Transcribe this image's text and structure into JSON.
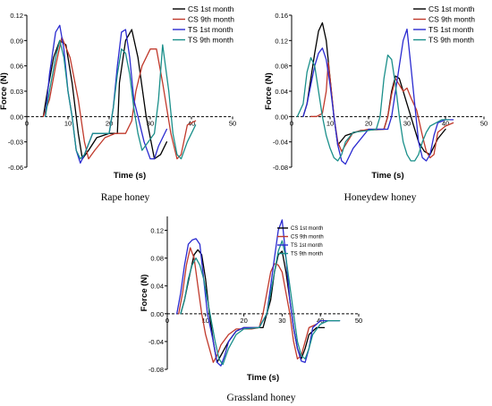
{
  "chart_data": [
    {
      "type": "line",
      "caption": "Rape honey",
      "xlabel": "Time (s)",
      "ylabel": "Force (N)",
      "xlim": [
        0,
        50
      ],
      "ylim": [
        -0.06,
        0.12
      ],
      "xticks": [
        0,
        10,
        20,
        30,
        40,
        50
      ],
      "yticks": [
        -0.06,
        -0.03,
        0.0,
        0.03,
        0.06,
        0.09,
        0.12
      ],
      "xtick_labels": [
        "0",
        "10",
        "20",
        "30",
        "40",
        "50"
      ],
      "ytick_labels": [
        "-0.06",
        "-0.03",
        "0.00",
        "0.03",
        "0.06",
        "0.09",
        "0.12"
      ],
      "legend_position": "top-right",
      "series": [
        {
          "name": "CS 1st month",
          "color": "#000000",
          "x": [
            4,
            5,
            6.5,
            8,
            9.5,
            11,
            12.5,
            13.5,
            15,
            17,
            20,
            22,
            22.5,
            24,
            25.5,
            27,
            29,
            31,
            32.5,
            34
          ],
          "y": [
            0.0,
            0.03,
            0.07,
            0.09,
            0.085,
            0.04,
            -0.02,
            -0.05,
            -0.04,
            -0.025,
            -0.02,
            -0.02,
            0.04,
            0.09,
            0.103,
            0.07,
            0.0,
            -0.05,
            -0.045,
            -0.03
          ]
        },
        {
          "name": "CS 9th month",
          "color": "#c0392b",
          "x": [
            4,
            5.5,
            7,
            8.5,
            10.5,
            12.5,
            14,
            15,
            16.5,
            19,
            21.5,
            24,
            25.5,
            26.5,
            28,
            30,
            31.5,
            33,
            35,
            36.5,
            37.5,
            39,
            41
          ],
          "y": [
            0.0,
            0.02,
            0.06,
            0.094,
            0.07,
            0.02,
            -0.03,
            -0.05,
            -0.04,
            -0.025,
            -0.02,
            -0.02,
            -0.005,
            0.03,
            0.06,
            0.08,
            0.08,
            0.04,
            -0.02,
            -0.05,
            -0.045,
            -0.01,
            -0.005
          ]
        },
        {
          "name": "TS 1st month",
          "color": "#2a2ad0",
          "x": [
            4.5,
            5.5,
            7,
            8,
            9,
            10,
            11,
            12,
            13,
            14,
            16,
            20,
            21,
            22,
            23,
            24,
            25,
            26,
            27,
            28.5,
            30,
            31,
            32,
            34
          ],
          "y": [
            0.0,
            0.05,
            0.1,
            0.108,
            0.08,
            0.03,
            0.0,
            -0.04,
            -0.055,
            -0.045,
            -0.02,
            -0.02,
            0.01,
            0.06,
            0.1,
            0.103,
            0.07,
            0.02,
            0.0,
            -0.03,
            -0.05,
            -0.05,
            -0.035,
            -0.015
          ]
        },
        {
          "name": "TS 9th month",
          "color": "#1a8f8a",
          "x": [
            4.5,
            5.5,
            7,
            8,
            9,
            10,
            11,
            12,
            13,
            14,
            16,
            20,
            21,
            22,
            23,
            24,
            25,
            26,
            27,
            28,
            29.5,
            31,
            32,
            33,
            34.5,
            35.5,
            36.5,
            37.5,
            39,
            41
          ],
          "y": [
            0.0,
            0.03,
            0.07,
            0.09,
            0.07,
            0.03,
            0.0,
            -0.04,
            -0.05,
            -0.045,
            -0.02,
            -0.02,
            0.01,
            0.05,
            0.08,
            0.075,
            0.05,
            0.01,
            -0.02,
            -0.04,
            -0.03,
            -0.02,
            0.02,
            0.085,
            0.03,
            -0.02,
            -0.045,
            -0.05,
            -0.03,
            -0.01
          ]
        }
      ]
    },
    {
      "type": "line",
      "caption": "Honeydew honey",
      "xlabel": "Time (s)",
      "ylabel": "Force (N)",
      "xlim": [
        0,
        50
      ],
      "ylim": [
        -0.08,
        0.16
      ],
      "xticks": [
        0,
        10,
        20,
        30,
        40,
        50
      ],
      "yticks": [
        -0.08,
        -0.04,
        0.0,
        0.04,
        0.08,
        0.12,
        0.16
      ],
      "xtick_labels": [
        "0",
        "10",
        "20",
        "30",
        "40",
        "50"
      ],
      "ytick_labels": [
        "-0.08",
        "-0.04",
        "0.00",
        "0.04",
        "0.08",
        "0.12",
        "0.16"
      ],
      "legend_position": "top-right",
      "series": [
        {
          "name": "CS 1st month",
          "color": "#000000",
          "x": [
            3,
            4,
            5,
            6,
            7,
            8,
            9,
            10,
            11,
            12,
            14,
            18,
            24,
            25,
            26,
            27,
            28,
            29,
            30,
            31,
            32,
            33,
            34.5,
            36,
            38,
            40
          ],
          "y": [
            0.0,
            0.02,
            0.06,
            0.1,
            0.135,
            0.148,
            0.12,
            0.06,
            0.0,
            -0.045,
            -0.03,
            -0.022,
            -0.02,
            0.0,
            0.04,
            0.064,
            0.06,
            0.04,
            0.02,
            0.0,
            -0.02,
            -0.04,
            -0.055,
            -0.06,
            -0.035,
            -0.02
          ]
        },
        {
          "name": "CS 9th month",
          "color": "#c0392b",
          "x": [
            5,
            6.5,
            8,
            9,
            9.5,
            10,
            11,
            12,
            13,
            14,
            16,
            20,
            24,
            25,
            26,
            27,
            28,
            29,
            30,
            31,
            32.5,
            34,
            35,
            36,
            37,
            38,
            40,
            42
          ],
          "y": [
            0.0,
            0.0,
            0.005,
            0.04,
            0.085,
            0.06,
            0.0,
            -0.04,
            -0.055,
            -0.045,
            -0.025,
            -0.02,
            -0.02,
            0.0,
            0.035,
            0.06,
            0.05,
            0.04,
            0.045,
            0.03,
            0.01,
            -0.03,
            -0.055,
            -0.065,
            -0.06,
            -0.025,
            -0.015,
            -0.01
          ]
        },
        {
          "name": "TS 1st month",
          "color": "#2a2ad0",
          "x": [
            3,
            4,
            5,
            6,
            7,
            8,
            9,
            10,
            11,
            12,
            13,
            14,
            16,
            20,
            25,
            26,
            27,
            28,
            29,
            30,
            31,
            32,
            33,
            34,
            35,
            36,
            37,
            38,
            40,
            42
          ],
          "y": [
            0.0,
            0.02,
            0.05,
            0.08,
            0.1,
            0.108,
            0.09,
            0.05,
            0.0,
            -0.045,
            -0.07,
            -0.075,
            -0.05,
            -0.02,
            -0.02,
            0.0,
            0.04,
            0.08,
            0.12,
            0.138,
            0.08,
            0.02,
            -0.04,
            -0.065,
            -0.07,
            -0.06,
            -0.03,
            -0.01,
            -0.005,
            -0.005
          ]
        },
        {
          "name": "TS 9th month",
          "color": "#1a8f8a",
          "x": [
            1.5,
            3,
            4,
            5,
            6,
            7,
            8,
            9,
            10,
            11,
            12,
            13,
            14,
            16,
            20,
            22,
            23,
            24,
            25,
            26,
            27,
            28,
            29,
            30,
            31,
            32,
            33,
            34,
            35,
            36,
            37.5,
            39,
            41
          ],
          "y": [
            0.0,
            0.02,
            0.07,
            0.093,
            0.08,
            0.04,
            0.0,
            -0.03,
            -0.05,
            -0.065,
            -0.07,
            -0.06,
            -0.04,
            -0.025,
            -0.022,
            -0.02,
            0.0,
            0.06,
            0.097,
            0.09,
            0.05,
            0.0,
            -0.04,
            -0.06,
            -0.07,
            -0.07,
            -0.06,
            -0.04,
            -0.025,
            -0.015,
            -0.01,
            -0.005,
            -0.005
          ]
        }
      ]
    },
    {
      "type": "line",
      "caption": "Grassland honey",
      "xlabel": "Time (s)",
      "ylabel": "Force (N)",
      "xlim": [
        0,
        50
      ],
      "ylim": [
        -0.08,
        0.14
      ],
      "xticks": [
        0,
        10,
        20,
        30,
        40,
        50
      ],
      "yticks": [
        -0.08,
        -0.04,
        0.0,
        0.04,
        0.08,
        0.12
      ],
      "xtick_labels": [
        "0",
        "10",
        "20",
        "30",
        "40",
        "50"
      ],
      "ytick_labels": [
        "-0.08",
        "-0.04",
        "0.00",
        "0.04",
        "0.08",
        "0.12"
      ],
      "legend_position": "top-right",
      "series": [
        {
          "name": "CS 1st month",
          "color": "#000000",
          "x": [
            3.5,
            4.5,
            6,
            7,
            8,
            9,
            10,
            11,
            12,
            13,
            14,
            16,
            18,
            20,
            22,
            25,
            27,
            28,
            29,
            30,
            31,
            32,
            33,
            34,
            35,
            36,
            37,
            39,
            41
          ],
          "y": [
            0.0,
            0.02,
            0.06,
            0.085,
            0.092,
            0.085,
            0.05,
            0.0,
            -0.04,
            -0.07,
            -0.06,
            -0.04,
            -0.025,
            -0.02,
            -0.02,
            -0.02,
            0.02,
            0.06,
            0.085,
            0.09,
            0.06,
            0.02,
            -0.02,
            -0.05,
            -0.065,
            -0.05,
            -0.03,
            -0.02,
            -0.02
          ]
        },
        {
          "name": "CS 9th month",
          "color": "#c0392b",
          "x": [
            3,
            4,
            5,
            6,
            7,
            8,
            9,
            10,
            11,
            12,
            13,
            14,
            16,
            18,
            22,
            24,
            25,
            26,
            27,
            28,
            29,
            30,
            31,
            32,
            33,
            34,
            35,
            36,
            37,
            39
          ],
          "y": [
            0.0,
            0.03,
            0.07,
            0.095,
            0.08,
            0.04,
            0.0,
            -0.03,
            -0.05,
            -0.07,
            -0.06,
            -0.045,
            -0.03,
            -0.022,
            -0.022,
            -0.02,
            0.0,
            0.03,
            0.06,
            0.072,
            0.07,
            0.06,
            0.03,
            0.0,
            -0.04,
            -0.065,
            -0.06,
            -0.04,
            -0.02,
            -0.015
          ]
        },
        {
          "name": "TS 1st month",
          "color": "#2a2ad0",
          "x": [
            2.5,
            3.5,
            4.5,
            5.5,
            6.5,
            7.5,
            8.5,
            9.5,
            10.5,
            12,
            13,
            14,
            15,
            16,
            18,
            20,
            24,
            26,
            27,
            28,
            29,
            30,
            31,
            32,
            33,
            34,
            35,
            36,
            37,
            38,
            40,
            42,
            45
          ],
          "y": [
            0.0,
            0.03,
            0.07,
            0.1,
            0.106,
            0.108,
            0.1,
            0.05,
            0.0,
            -0.04,
            -0.07,
            -0.075,
            -0.06,
            -0.04,
            -0.025,
            -0.02,
            -0.02,
            0.0,
            0.04,
            0.08,
            0.12,
            0.135,
            0.08,
            0.02,
            -0.02,
            -0.05,
            -0.068,
            -0.07,
            -0.05,
            -0.02,
            -0.01,
            -0.01,
            -0.01
          ]
        },
        {
          "name": "TS 9th month",
          "color": "#1a8f8a",
          "x": [
            3.5,
            4.5,
            5.5,
            6.5,
            7.5,
            8.5,
            9.5,
            10.5,
            11.5,
            12.5,
            13.5,
            14.5,
            16,
            18,
            20,
            24,
            26,
            27,
            28,
            29,
            30,
            31,
            32,
            33,
            34,
            35,
            36,
            37,
            38,
            40,
            42,
            45
          ],
          "y": [
            0.0,
            0.02,
            0.05,
            0.07,
            0.08,
            0.07,
            0.05,
            0.02,
            -0.01,
            -0.04,
            -0.065,
            -0.073,
            -0.05,
            -0.03,
            -0.022,
            -0.02,
            0.0,
            0.03,
            0.06,
            0.09,
            0.105,
            0.08,
            0.04,
            0.0,
            -0.04,
            -0.06,
            -0.065,
            -0.05,
            -0.03,
            -0.015,
            -0.01,
            -0.01
          ]
        }
      ]
    }
  ]
}
